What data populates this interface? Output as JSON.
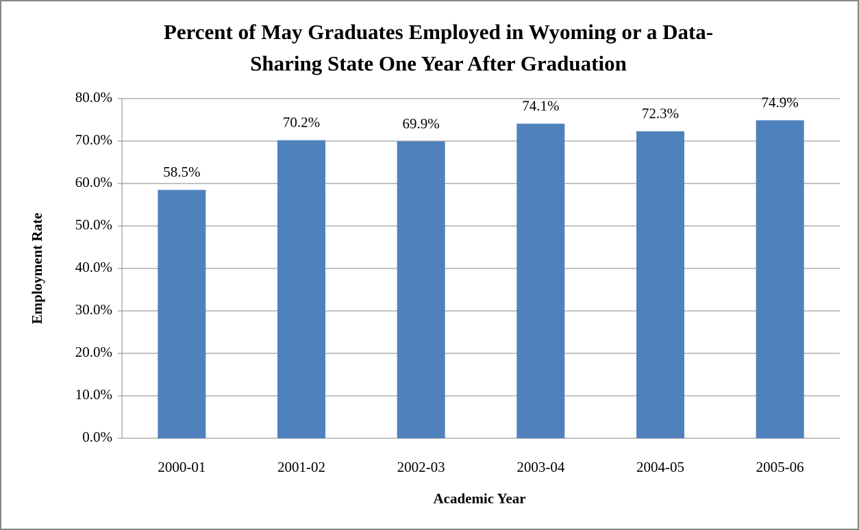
{
  "chart_data": {
    "type": "bar",
    "title": [
      "Percent of May Graduates Employed in Wyoming or a Data-",
      "Sharing State One Year After Graduation"
    ],
    "x_label": "Academic Year",
    "y_label": "Employment Rate",
    "categories": [
      "2000-01",
      "2001-02",
      "2002-03",
      "2003-04",
      "2004-05",
      "2005-06"
    ],
    "values": [
      58.5,
      70.2,
      69.9,
      74.1,
      72.3,
      74.9
    ],
    "value_labels": [
      "58.5%",
      "70.2%",
      "69.9%",
      "74.1%",
      "72.3%",
      "74.9%"
    ],
    "color": "#4f81bd",
    "ylim": [
      0,
      80
    ],
    "yticks": [
      {
        "value": 0,
        "label": "0.0%"
      },
      {
        "value": 10,
        "label": "10.0%"
      },
      {
        "value": 20,
        "label": "20.0%"
      },
      {
        "value": 30,
        "label": "30.0%"
      },
      {
        "value": 40,
        "label": "40.0%"
      },
      {
        "value": 50,
        "label": "50.0%"
      },
      {
        "value": 60,
        "label": "60.0%"
      },
      {
        "value": 70,
        "label": "70.0%"
      },
      {
        "value": 80,
        "label": "80.0%"
      }
    ],
    "grid": true
  }
}
